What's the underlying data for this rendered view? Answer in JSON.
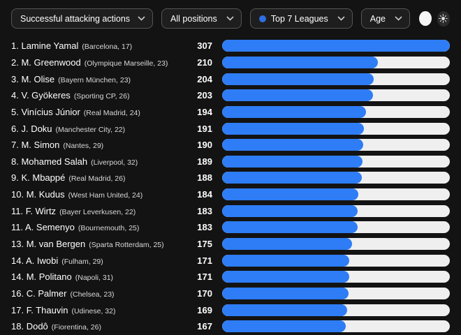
{
  "theme": {
    "background": "#131313",
    "accent_blue": "#2e7df6",
    "bar_track": "#efefef",
    "dropdown_bg": "#1e1e1e",
    "dropdown_border": "#555555",
    "text_primary": "#ffffff",
    "text_secondary": "#d9d9d9"
  },
  "toolbar": {
    "metric_filter": {
      "label": "Successful attacking actions"
    },
    "position_filter": {
      "label": "All positions"
    },
    "league_filter": {
      "label": "Top 7 Leagues",
      "icon": "league-dot-icon"
    },
    "age_filter": {
      "label": "Age"
    },
    "theme_controls": {
      "light_button_icon": "circle-icon",
      "sun_button_icon": "sun-icon"
    }
  },
  "chart_data": {
    "type": "bar",
    "orientation": "horizontal",
    "title": "Successful attacking actions",
    "metric": "Successful attacking actions",
    "max_value": 307,
    "legend": "none",
    "grid": false,
    "categories": [
      "Lamine Yamal",
      "M. Greenwood",
      "M. Olise",
      "V. Gyökeres",
      "Vinícius Júnior",
      "J. Doku",
      "M. Simon",
      "Mohamed Salah",
      "K. Mbappé",
      "M. Kudus",
      "F. Wirtz",
      "A. Semenyo",
      "M. van Bergen",
      "A. Iwobi",
      "M. Politano",
      "C. Palmer",
      "F. Thauvin",
      "Dodô"
    ],
    "values": [
      307,
      210,
      204,
      203,
      194,
      191,
      190,
      189,
      188,
      184,
      183,
      183,
      175,
      171,
      171,
      170,
      169,
      167
    ],
    "rows": [
      {
        "rank": "1.",
        "name": "Lamine Yamal",
        "meta": "(Barcelona, 17)",
        "value": 307
      },
      {
        "rank": "2.",
        "name": "M. Greenwood",
        "meta": "(Olympique Marseille, 23)",
        "value": 210
      },
      {
        "rank": "3.",
        "name": "M. Olise",
        "meta": "(Bayern München, 23)",
        "value": 204
      },
      {
        "rank": "4.",
        "name": "V. Gyökeres",
        "meta": "(Sporting CP, 26)",
        "value": 203
      },
      {
        "rank": "5.",
        "name": "Vinícius Júnior",
        "meta": "(Real Madrid, 24)",
        "value": 194
      },
      {
        "rank": "6.",
        "name": "J. Doku",
        "meta": "(Manchester City, 22)",
        "value": 191
      },
      {
        "rank": "7.",
        "name": "M. Simon",
        "meta": "(Nantes, 29)",
        "value": 190
      },
      {
        "rank": "8.",
        "name": "Mohamed Salah",
        "meta": "(Liverpool, 32)",
        "value": 189
      },
      {
        "rank": "9.",
        "name": "K. Mbappé",
        "meta": "(Real Madrid, 26)",
        "value": 188
      },
      {
        "rank": "10.",
        "name": "M. Kudus",
        "meta": "(West Ham United, 24)",
        "value": 184
      },
      {
        "rank": "11.",
        "name": "F. Wirtz",
        "meta": "(Bayer Leverkusen, 22)",
        "value": 183
      },
      {
        "rank": "11.",
        "name": "A. Semenyo",
        "meta": "(Bournemouth, 25)",
        "value": 183
      },
      {
        "rank": "13.",
        "name": "M. van Bergen",
        "meta": "(Sparta Rotterdam, 25)",
        "value": 175
      },
      {
        "rank": "14.",
        "name": "A. Iwobi",
        "meta": "(Fulham, 29)",
        "value": 171
      },
      {
        "rank": "14.",
        "name": "M. Politano",
        "meta": "(Napoli, 31)",
        "value": 171
      },
      {
        "rank": "16.",
        "name": "C. Palmer",
        "meta": "(Chelsea, 23)",
        "value": 170
      },
      {
        "rank": "17.",
        "name": "F. Thauvin",
        "meta": "(Udinese, 32)",
        "value": 169
      },
      {
        "rank": "18.",
        "name": "Dodô",
        "meta": "(Fiorentina, 26)",
        "value": 167
      }
    ]
  }
}
